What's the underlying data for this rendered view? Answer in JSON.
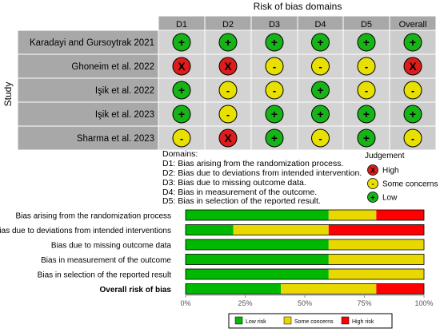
{
  "colors": {
    "high": "#dd1c1c",
    "some": "#e8e000",
    "low": "#16b416",
    "header": "#a8a8a8",
    "cell": "#d3d3d3",
    "overall_col": "#cccccc",
    "bar_high": "#ff0000",
    "bar_some": "#e8d800",
    "bar_low": "#00b800"
  },
  "traffic": {
    "title": "Risk of bias domains",
    "study_axis": "Study",
    "columns": [
      "D1",
      "D2",
      "D3",
      "D4",
      "D5",
      "Overall"
    ],
    "studies": [
      {
        "name": "Karadayi and Gursoytrak 2021",
        "ratings": [
          "low",
          "low",
          "low",
          "low",
          "low",
          "low"
        ]
      },
      {
        "name": "Ghoneim et al. 2022",
        "ratings": [
          "high",
          "high",
          "some",
          "some",
          "some",
          "high"
        ]
      },
      {
        "name": "Işik et al. 2022",
        "ratings": [
          "low",
          "some",
          "some",
          "low",
          "some",
          "some"
        ]
      },
      {
        "name": "Işik et al. 2023",
        "ratings": [
          "low",
          "some",
          "low",
          "low",
          "low",
          "low"
        ]
      },
      {
        "name": "Sharma et al. 2023",
        "ratings": [
          "some",
          "high",
          "low",
          "some",
          "low",
          "some"
        ]
      }
    ],
    "symbols": {
      "low": "+",
      "some": "-",
      "high": "X"
    },
    "domains_title": "Domains:",
    "domains": [
      "D1: Bias arising from the randomization process.",
      "D2: Bias due to deviations from intended intervention.",
      "D3: Bias due to missing outcome data.",
      "D4: Bias in measurement of the outcome.",
      "D5: Bias in selection of the reported result."
    ],
    "judgement_title": "Judgement",
    "judgement": [
      {
        "key": "high",
        "label": "High"
      },
      {
        "key": "some",
        "label": "Some concerns"
      },
      {
        "key": "low",
        "label": "Low"
      }
    ]
  },
  "chart_data": {
    "type": "bar",
    "orientation": "horizontal",
    "stacked": true,
    "categories": [
      "Bias arising from the randomization process",
      "Bias due to deviations from intended interventions",
      "Bias due to missing outcome data",
      "Bias in measurement of the outcome",
      "Bias in selection of the reported result",
      "Overall risk of bias"
    ],
    "series": [
      {
        "name": "Low risk",
        "key": "low",
        "values": [
          60,
          20,
          60,
          60,
          60,
          40
        ]
      },
      {
        "name": "Some concerns",
        "key": "some",
        "values": [
          20,
          40,
          40,
          40,
          40,
          40
        ]
      },
      {
        "name": "High risk",
        "key": "high",
        "values": [
          20,
          40,
          0,
          0,
          0,
          20
        ]
      }
    ],
    "xlim": [
      0,
      100
    ],
    "xticks": [
      "0%",
      "25%",
      "50%",
      "75%",
      "100%"
    ],
    "legend_position": "bottom"
  }
}
